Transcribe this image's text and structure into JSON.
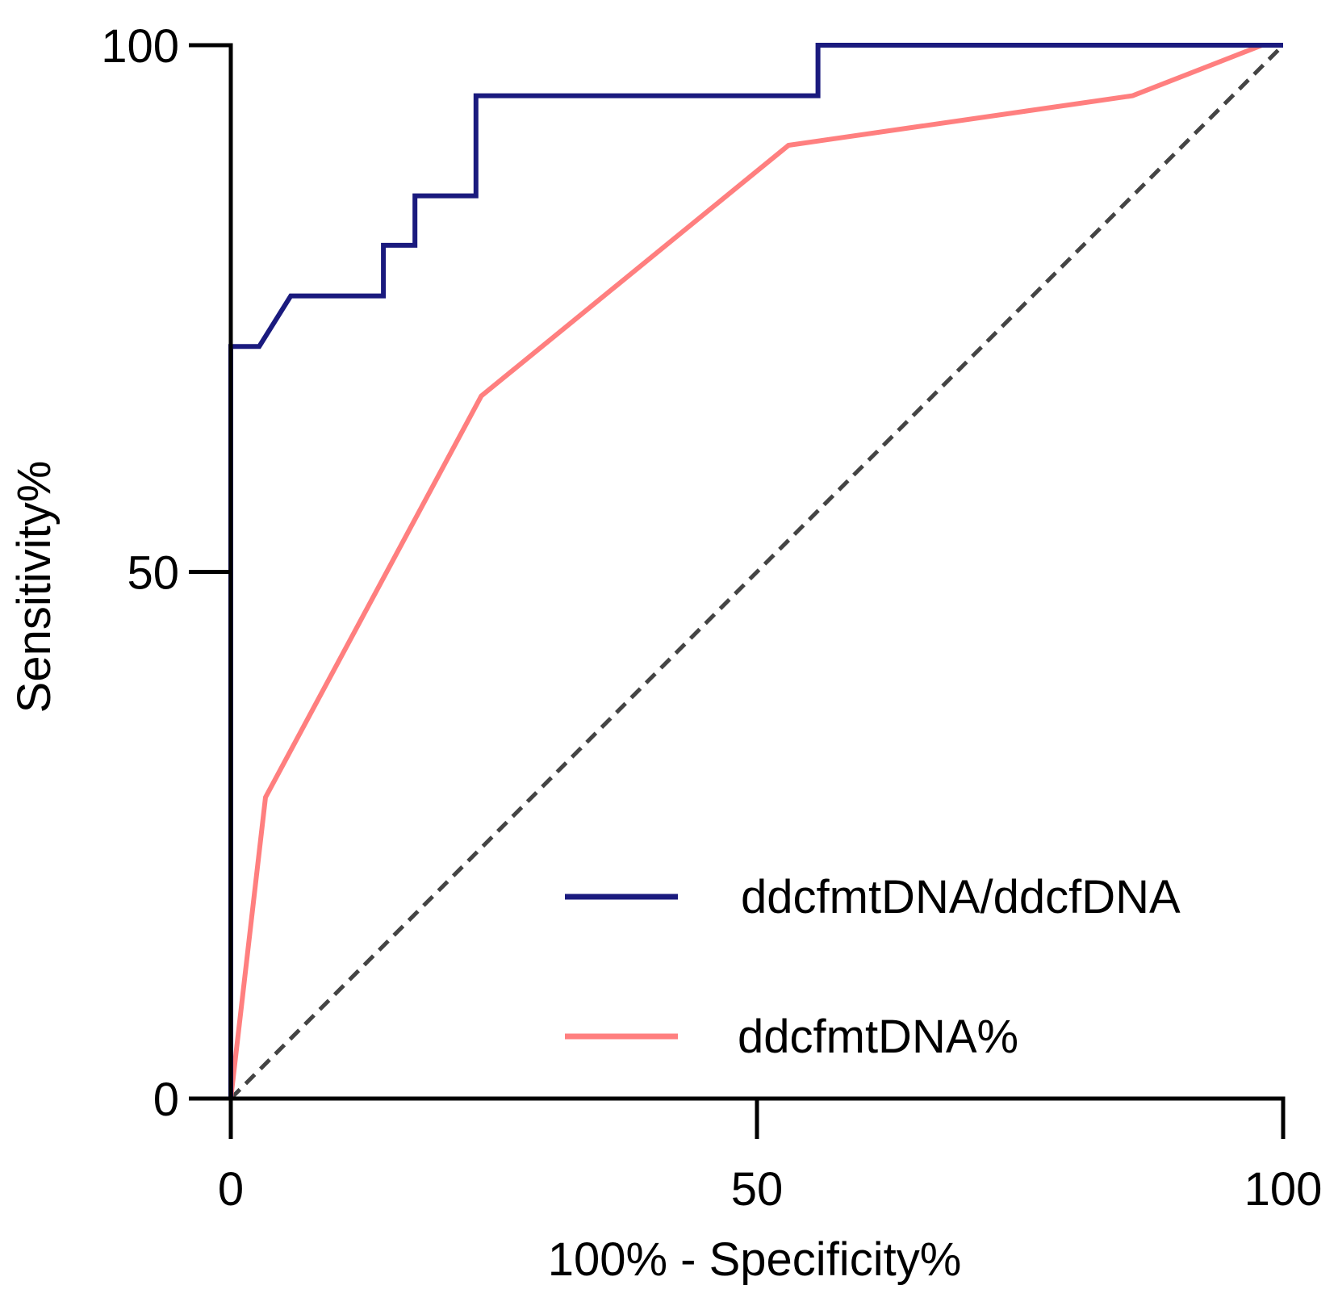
{
  "chart_data": {
    "type": "line",
    "title": "",
    "xlabel": "100% - Specificity%",
    "ylabel": "Sensitivity%",
    "xlim": [
      0,
      100
    ],
    "ylim": [
      0,
      100
    ],
    "xticks": [
      0,
      50,
      100
    ],
    "yticks": [
      0,
      50,
      100
    ],
    "grid": false,
    "legend_position": "bottom-right",
    "colors": {
      "series1": "#1a1a7e",
      "series2": "#ff7f7f",
      "reference": "#444444"
    },
    "series": [
      {
        "name": "ddcfmtDNA/ddcfDNA",
        "color": "#1a1a7e",
        "x": [
          0,
          0,
          2.7,
          5.7,
          14.5,
          14.5,
          17.5,
          17.5,
          23.3,
          23.3,
          55.8,
          55.8,
          100
        ],
        "y": [
          0,
          71.4,
          71.4,
          76.2,
          76.2,
          81.0,
          81.0,
          85.7,
          85.7,
          95.2,
          95.2,
          100,
          100
        ]
      },
      {
        "name": "ddcfmtDNA%",
        "color": "#ff7f7f",
        "x": [
          0,
          3.3,
          23.8,
          53.0,
          85.7,
          98.0,
          100
        ],
        "y": [
          0,
          28.6,
          66.7,
          90.5,
          95.2,
          100,
          100
        ]
      }
    ],
    "reference_line": {
      "name": "chance",
      "x": [
        0,
        100
      ],
      "y": [
        0,
        100
      ],
      "style": "dashed"
    }
  }
}
